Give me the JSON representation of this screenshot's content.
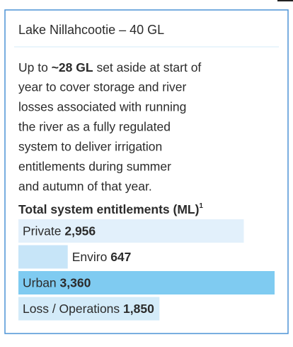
{
  "chart_data": {
    "type": "bar",
    "orientation": "horizontal",
    "title": "Lake Nillahcootie – 40 GL",
    "description": {
      "before": "Up to",
      "bold": "~28 GL",
      "rest_lines": [
        "set aside at start of",
        "year to cover storage and river",
        "losses associated with running",
        "the river as a fully regulated",
        "system to deliver irrigation",
        "entitlements during summer",
        "and autumn of that year."
      ]
    },
    "subtitle": "Total system entitlements (ML)",
    "footnote_mark": "1",
    "categories": [
      "Private",
      "Enviro",
      "Urban",
      "Loss / Operations"
    ],
    "values": [
      2956,
      647,
      3360,
      1850
    ],
    "value_labels": [
      "2,956",
      "647",
      "3,360",
      "1,850"
    ],
    "colors": [
      "#e2f0fb",
      "#c7e5f8",
      "#7fcbf1",
      "#d3ebf9"
    ],
    "border_color": "#4d93d6"
  }
}
